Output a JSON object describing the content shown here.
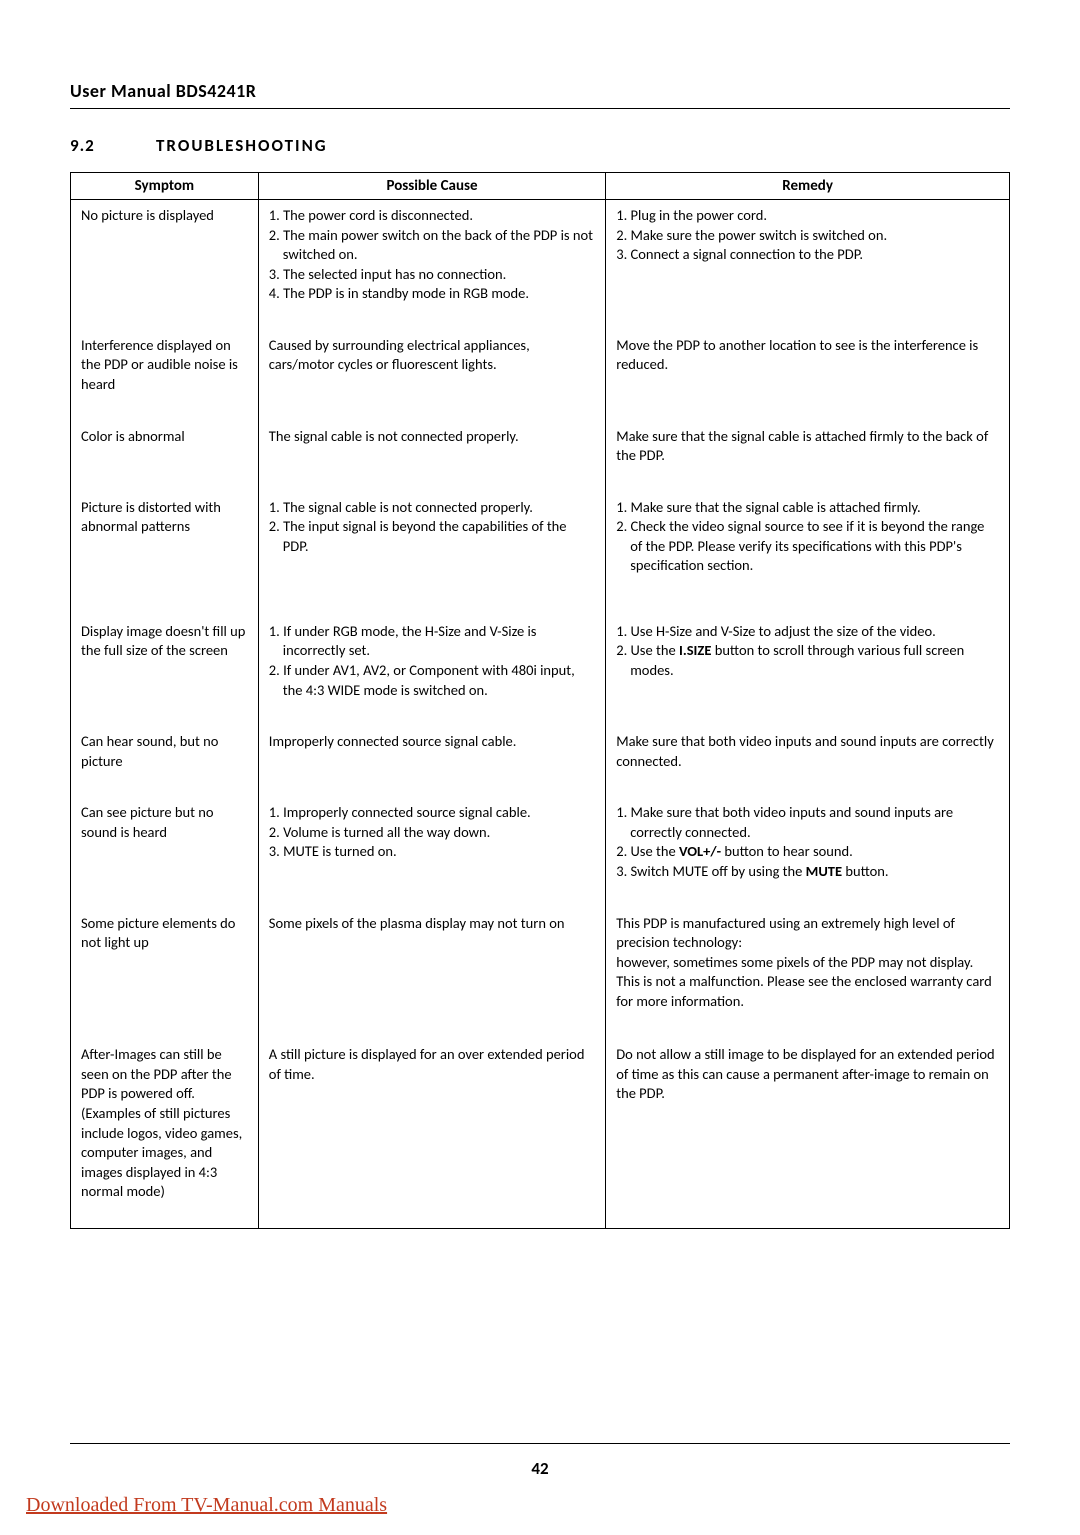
{
  "header": {
    "title": "User Manual BDS4241R"
  },
  "section": {
    "num": "9.2",
    "title": "TROUBLESHOOTING"
  },
  "table": {
    "headers": {
      "symptom": "Symptom",
      "cause": "Possible Cause",
      "remedy": "Remedy"
    },
    "rows": [
      {
        "symptom": [
          "No picture is displayed"
        ],
        "cause": [
          "1. The power cord is disconnected.",
          "2. The main power switch on the back of the PDP is not switched on.",
          "3. The selected input has no connection.",
          "4. The PDP is in standby mode in RGB mode."
        ],
        "remedy": [
          "1. Plug in the power cord.",
          "2. Make sure the power switch is switched on.",
          "3. Connect a signal connection to the PDP."
        ]
      },
      {
        "symptom": [
          "Interference displayed on the PDP or audible noise is heard"
        ],
        "cause": [
          "Caused by surrounding electrical appliances, cars/motor cycles or fluorescent lights."
        ],
        "remedy": [
          "Move the PDP to another location to see is the interference is reduced."
        ]
      },
      {
        "symptom": [
          "Color is abnormal"
        ],
        "cause": [
          "The signal cable is not connected properly."
        ],
        "remedy": [
          "Make sure that the signal cable is attached firmly to the back of the PDP."
        ]
      },
      {
        "symptom": [
          "Picture is distorted with abnormal patterns"
        ],
        "cause": [
          "1. The signal cable is not connected properly.",
          "2. The input signal is beyond the capabilities of the PDP."
        ],
        "remedy": [
          "1. Make sure that the signal cable is attached firmly.",
          "2. Check the video signal source to see if it is beyond the range of the PDP. Please verify its specifications with this PDP's specification section."
        ]
      },
      {
        "symptom": [
          "Display image doesn't fill up the full size of the screen"
        ],
        "cause": [
          "1. If under RGB mode, the H-Size and V-Size is incorrectly set.",
          "2. If under AV1, AV2, or Component with 480i input, the 4:3 WIDE mode is switched on."
        ],
        "remedy_html": [
          "1. Use H-Size and V-Size to adjust the size of the video.",
          "2. Use the <strong>I.SIZE</strong> button to scroll through various full screen modes."
        ]
      },
      {
        "symptom": [
          "Can hear sound, but no picture"
        ],
        "cause": [
          "Improperly connected source signal cable."
        ],
        "remedy": [
          "Make sure that both video inputs and sound inputs are correctly connected."
        ]
      },
      {
        "symptom": [
          "Can see picture but no sound is heard"
        ],
        "cause": [
          "1. Improperly connected source signal cable.",
          "2. Volume is turned all the way down.",
          "3. MUTE is turned on."
        ],
        "remedy_html": [
          "1. Make sure that both video inputs and sound inputs are correctly connected.",
          "2. Use the <strong>VOL+/-</strong> button to hear sound.",
          "3. Switch MUTE off by using the <strong>MUTE</strong> button."
        ]
      },
      {
        "symptom": [
          "Some picture elements do not light up"
        ],
        "cause": [
          "Some pixels of the plasma display may not turn on"
        ],
        "remedy": [
          "This PDP is manufactured using an extremely high level of precision technology:",
          "however, sometimes some pixels of the PDP may not display.",
          "This is not a malfunction. Please see the enclosed warranty card for more information."
        ]
      },
      {
        "symptom": [
          "After-Images can still be seen on the PDP after the PDP is powered off. (Examples of still pictures include logos, video games, computer images, and images displayed in 4:3 normal mode)"
        ],
        "cause": [
          "A still picture is displayed for an over extended period of time."
        ],
        "remedy": [
          "Do not allow a still image to be displayed for an extended period of time as this can cause a permanent after-image to remain on the PDP."
        ]
      }
    ]
  },
  "footer": {
    "page": "42"
  },
  "download_link": "Downloaded From TV-Manual.com Manuals",
  "colors": {
    "link": "#c23a1e",
    "text": "#000000",
    "bg": "#ffffff"
  }
}
